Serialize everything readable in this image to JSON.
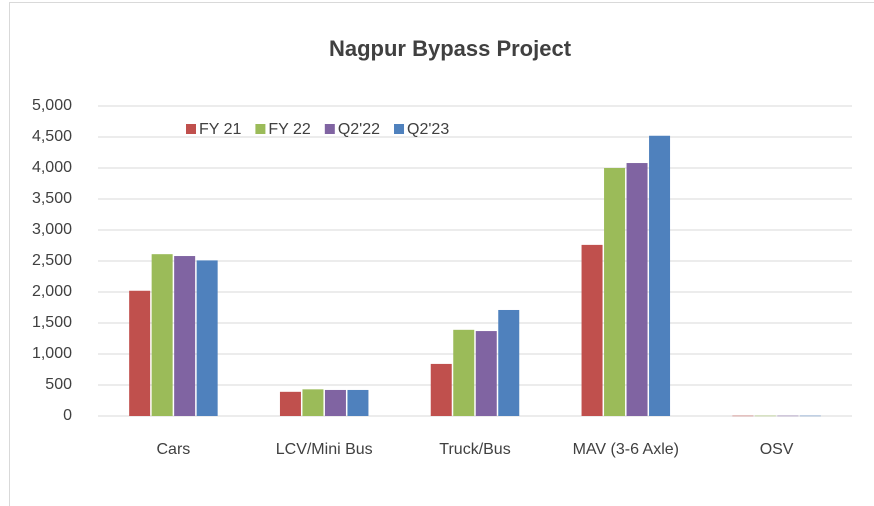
{
  "chart_data": {
    "type": "bar",
    "title": "Nagpur Bypass Project",
    "categories": [
      "Cars",
      "LCV/Mini Bus",
      "Truck/Bus",
      "MAV (3-6 Axle)",
      "OSV"
    ],
    "series": [
      {
        "name": "FY 21",
        "color": "#c0504d",
        "values": [
          2020,
          390,
          840,
          2760,
          5
        ]
      },
      {
        "name": "FY 22",
        "color": "#9bbb59",
        "values": [
          2610,
          430,
          1390,
          4000,
          5
        ]
      },
      {
        "name": "Q2'22",
        "color": "#8064a2",
        "values": [
          2580,
          420,
          1370,
          4080,
          5
        ]
      },
      {
        "name": "Q2'23",
        "color": "#4f81bd",
        "values": [
          2510,
          420,
          1710,
          4520,
          5
        ]
      }
    ],
    "ylim": [
      0,
      5000
    ],
    "yticks": [
      0,
      500,
      {
        "value": 1000,
        "label": "1,000"
      },
      {
        "value": 1500,
        "label": "1,500"
      },
      {
        "value": 2000,
        "label": "2,000"
      },
      {
        "value": 2500,
        "label": "2,500"
      },
      {
        "value": 3000,
        "label": "3,000"
      },
      {
        "value": 3500,
        "label": "3,500"
      },
      {
        "value": 4000,
        "label": "4,000"
      },
      {
        "value": 4500,
        "label": "4,500"
      },
      {
        "value": 5000,
        "label": "5,000"
      }
    ],
    "grid": true,
    "legend": "top-left"
  }
}
